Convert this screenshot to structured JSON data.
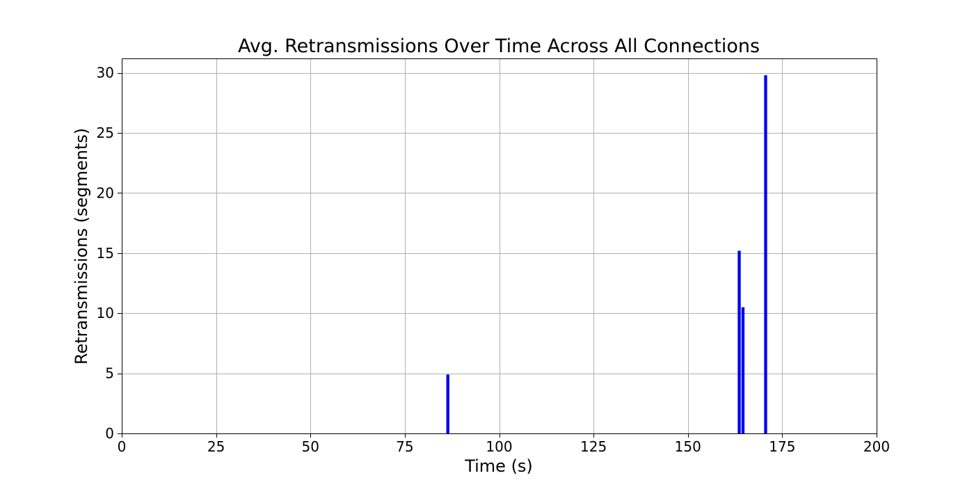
{
  "chart_data": {
    "type": "bar",
    "title": "Avg. Retransmissions Over Time Across All Connections",
    "xlabel": "Time (s)",
    "ylabel": "Retransmissions (segments)",
    "xlim": [
      0,
      200
    ],
    "ylim": [
      0,
      31.2
    ],
    "xticks": [
      0,
      25,
      50,
      75,
      100,
      125,
      150,
      175,
      200
    ],
    "yticks": [
      0,
      5,
      10,
      15,
      20,
      25,
      30
    ],
    "grid": true,
    "bar_color": "#0000ee",
    "bar_width": 0.8,
    "series": [
      {
        "points": [
          {
            "x": 86.4,
            "y": 4.9
          },
          {
            "x": 163.6,
            "y": 15.2
          },
          {
            "x": 164.6,
            "y": 10.5
          },
          {
            "x": 170.6,
            "y": 29.8
          }
        ]
      }
    ]
  }
}
